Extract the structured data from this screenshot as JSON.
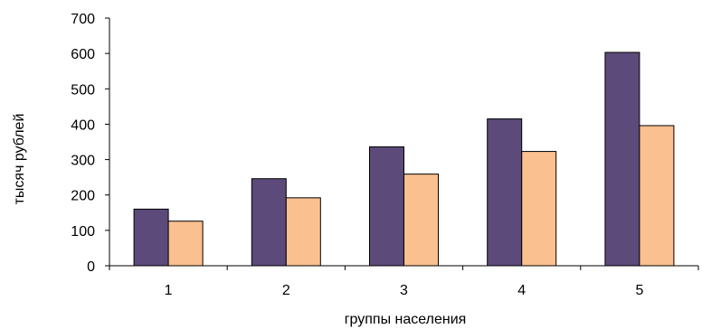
{
  "chart_data": {
    "type": "bar",
    "title": "",
    "xlabel": "группы населения",
    "ylabel": "тысяч рублей",
    "categories": [
      "1",
      "2",
      "3",
      "4",
      "5"
    ],
    "ylim": [
      0,
      700
    ],
    "yticks": [
      0,
      100,
      200,
      300,
      400,
      500,
      600,
      700
    ],
    "grid": false,
    "legend": "none",
    "series": [
      {
        "values": [
          160,
          246,
          336,
          415,
          603
        ],
        "color": "#5c4a7a"
      },
      {
        "values": [
          126,
          192,
          259,
          323,
          396
        ],
        "color": "#fac090"
      }
    ]
  }
}
